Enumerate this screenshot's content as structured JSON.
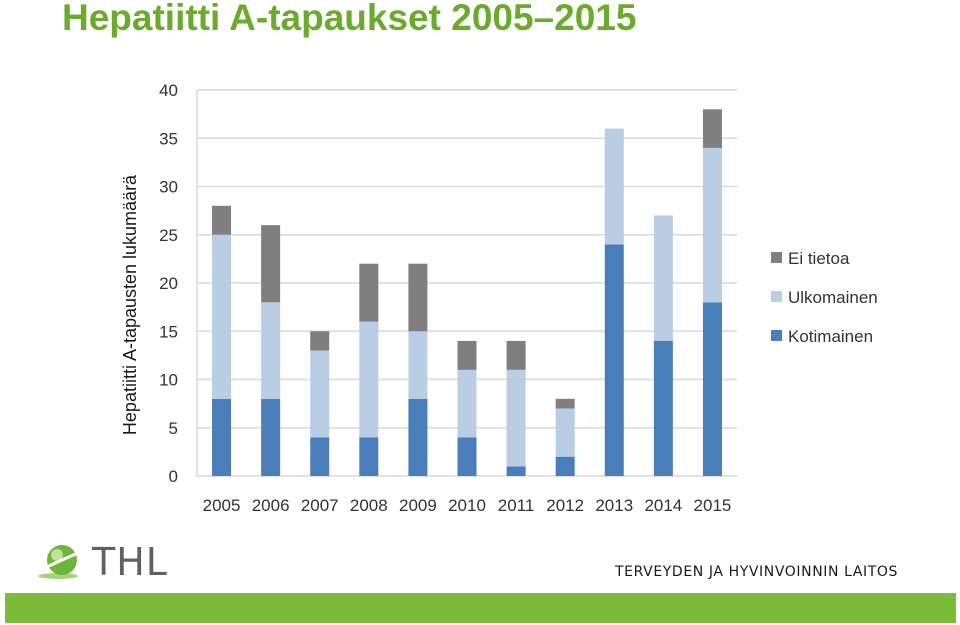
{
  "slide": {
    "title": "Hepatiitti A-tapaukset 2005–2015"
  },
  "footer": {
    "logo_text": "THL",
    "org_name": "TERVEYDEN JA HYVINVOINNIN LAITOS",
    "bar_color": "#7bbb3a"
  },
  "chart_data": {
    "type": "bar",
    "stacked": true,
    "title": "",
    "xlabel": "",
    "ylabel": "Hepatiitti A-tapausten lukumäärä",
    "ylim": [
      0,
      40
    ],
    "yticks": [
      0,
      5,
      10,
      15,
      20,
      25,
      30,
      35,
      40
    ],
    "grid": true,
    "legend_position": "right",
    "categories": [
      "2005",
      "2006",
      "2007",
      "2008",
      "2009",
      "2010",
      "2011",
      "2012",
      "2013",
      "2014",
      "2015"
    ],
    "series": [
      {
        "name": "Kotimainen",
        "color": "#4a7ebb",
        "values": [
          8,
          8,
          4,
          4,
          8,
          4,
          1,
          2,
          24,
          14,
          18
        ]
      },
      {
        "name": "Ulkomainen",
        "color": "#b9cde5",
        "values": [
          17,
          10,
          9,
          12,
          7,
          7,
          10,
          5,
          12,
          13,
          16
        ]
      },
      {
        "name": "Ei tietoa",
        "color": "#7f7f7f",
        "values": [
          3,
          8,
          2,
          6,
          7,
          3,
          3,
          1,
          0,
          0,
          4
        ]
      }
    ],
    "legend_order": [
      "Ei tietoa",
      "Ulkomainen",
      "Kotimainen"
    ]
  }
}
